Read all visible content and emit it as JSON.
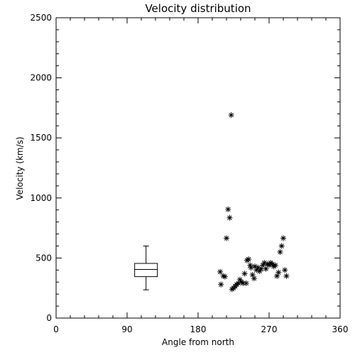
{
  "chart_data": {
    "type": "scatter",
    "title": "Velocity distribution",
    "xlabel": "Angle from north",
    "ylabel": "Velocity (km/s)",
    "xlim": [
      0,
      360
    ],
    "ylim": [
      0,
      2500
    ],
    "xticks": [
      0,
      90,
      180,
      270,
      360
    ],
    "yticks": [
      0,
      500,
      1000,
      1500,
      2000,
      2500
    ],
    "xtick_labels": [
      "0",
      "90",
      "180",
      "270",
      "360"
    ],
    "ytick_labels": [
      "0",
      "500",
      "1000",
      "1500",
      "2000",
      "2500"
    ],
    "grid": false,
    "marker": "asterisk",
    "colors": {
      "axes": "#000000",
      "background": "#ffffff"
    },
    "points": [
      {
        "x": 208,
        "y": 385
      },
      {
        "x": 209,
        "y": 280
      },
      {
        "x": 212,
        "y": 350
      },
      {
        "x": 214,
        "y": 345
      },
      {
        "x": 216,
        "y": 665
      },
      {
        "x": 218,
        "y": 905
      },
      {
        "x": 220,
        "y": 835
      },
      {
        "x": 222,
        "y": 1690
      },
      {
        "x": 223,
        "y": 240
      },
      {
        "x": 225,
        "y": 250
      },
      {
        "x": 227,
        "y": 265
      },
      {
        "x": 229,
        "y": 280
      },
      {
        "x": 231,
        "y": 290
      },
      {
        "x": 233,
        "y": 320
      },
      {
        "x": 235,
        "y": 300
      },
      {
        "x": 237,
        "y": 290
      },
      {
        "x": 239,
        "y": 370
      },
      {
        "x": 241,
        "y": 290
      },
      {
        "x": 242,
        "y": 480
      },
      {
        "x": 244,
        "y": 490
      },
      {
        "x": 246,
        "y": 440
      },
      {
        "x": 247,
        "y": 420
      },
      {
        "x": 249,
        "y": 360
      },
      {
        "x": 251,
        "y": 330
      },
      {
        "x": 252,
        "y": 430
      },
      {
        "x": 254,
        "y": 400
      },
      {
        "x": 256,
        "y": 420
      },
      {
        "x": 258,
        "y": 390
      },
      {
        "x": 260,
        "y": 410
      },
      {
        "x": 262,
        "y": 440
      },
      {
        "x": 264,
        "y": 460
      },
      {
        "x": 266,
        "y": 410
      },
      {
        "x": 268,
        "y": 450
      },
      {
        "x": 270,
        "y": 440
      },
      {
        "x": 272,
        "y": 460
      },
      {
        "x": 274,
        "y": 450
      },
      {
        "x": 276,
        "y": 430
      },
      {
        "x": 278,
        "y": 440
      },
      {
        "x": 280,
        "y": 350
      },
      {
        "x": 282,
        "y": 380
      },
      {
        "x": 284,
        "y": 550
      },
      {
        "x": 286,
        "y": 600
      },
      {
        "x": 288,
        "y": 665
      },
      {
        "x": 290,
        "y": 400
      },
      {
        "x": 292,
        "y": 350
      }
    ],
    "boxplot": {
      "x": 114,
      "whisker_low": 235,
      "q1": 345,
      "median": 405,
      "q3": 455,
      "whisker_high": 600
    }
  }
}
